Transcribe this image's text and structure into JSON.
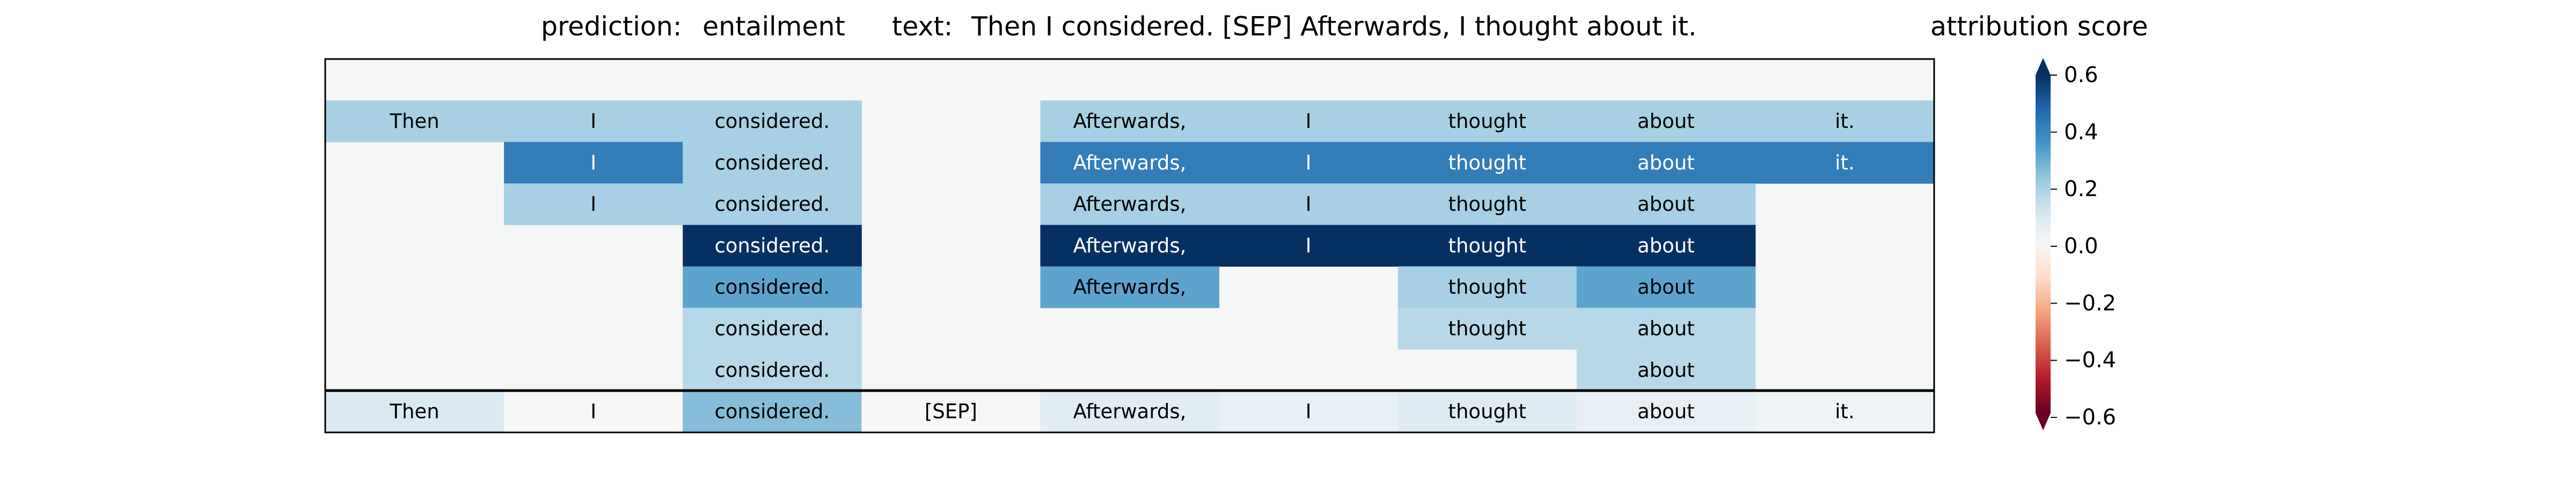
{
  "header": {
    "prediction_label": "prediction:",
    "prediction_value": "entailment",
    "text_label": "text:",
    "text_value": "Then I considered. [SEP] Afterwards, I thought about it.",
    "colorbar_title": "attribution score"
  },
  "colors": {
    "background": "#f5f6f6",
    "frame": "#000000",
    "colormap": "RdBu",
    "cmap_stops": [
      "#67001f",
      "#b2182b",
      "#d6604d",
      "#f4a582",
      "#fddbc7",
      "#f7f7f7",
      "#d1e5f0",
      "#92c5de",
      "#4393c3",
      "#2166ac",
      "#053061"
    ]
  },
  "chart_data": {
    "type": "heatmap",
    "tokens": [
      "Then",
      "I",
      "considered.",
      "[SEP]",
      "Afterwards,",
      "I",
      "thought",
      "about",
      "it."
    ],
    "layer_rows": [
      [
        0.2,
        0.2,
        0.2,
        null,
        0.2,
        0.2,
        0.2,
        0.2,
        0.2
      ],
      [
        null,
        0.42,
        0.2,
        null,
        0.42,
        0.42,
        0.42,
        0.42,
        0.42
      ],
      [
        null,
        0.2,
        0.2,
        null,
        0.2,
        0.2,
        0.2,
        0.2,
        null
      ],
      [
        null,
        null,
        0.6,
        null,
        0.6,
        0.6,
        0.6,
        0.6,
        null
      ],
      [
        null,
        null,
        0.32,
        null,
        0.32,
        null,
        0.2,
        0.32,
        null
      ],
      [
        null,
        null,
        0.17,
        null,
        null,
        null,
        0.17,
        0.17,
        null
      ],
      [
        null,
        null,
        0.17,
        null,
        null,
        null,
        null,
        0.17,
        null
      ]
    ],
    "summary_row": [
      0.09,
      0.0,
      0.26,
      0.0,
      0.07,
      0.05,
      0.08,
      0.05,
      0.03
    ],
    "colorbar": {
      "vmin": -0.6,
      "vmax": 0.6,
      "ticks": [
        0.6,
        0.4,
        0.2,
        0.0,
        -0.2,
        -0.4,
        -0.6
      ],
      "tick_labels": [
        "0.6",
        "0.4",
        "0.2",
        "0.0",
        "−0.2",
        "−0.4",
        "−0.6"
      ],
      "extend": "both"
    }
  }
}
